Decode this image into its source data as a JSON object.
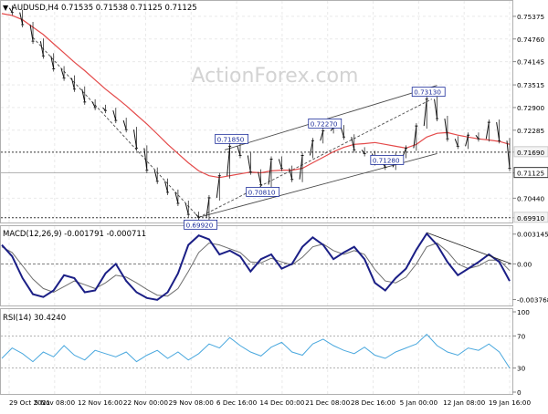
{
  "chart_data": [
    {
      "type": "candlestick",
      "symbol_header": {
        "marker": "▼",
        "text": "AUDUSD,H4  0.71535 0.71538 0.71125 0.71125"
      },
      "watermark": "ActionForex.com",
      "x_tick_labels": [
        "29 Oct 2021",
        "5 Nov 08:00",
        "12 Nov 16:00",
        "22 Nov 00:00",
        "29 Nov 08:00",
        "6 Dec 16:00",
        "14 Dec 00:00",
        "21 Dec 08:00",
        "28 Dec 16:00",
        "5 Jan 00:00",
        "12 Jan 08:00",
        "19 Jan 16:00"
      ],
      "y_tick_labels": [
        "0.75375",
        "0.74760",
        "0.74145",
        "0.73515",
        "0.72900",
        "0.72285",
        "0.71690",
        "0.71125",
        "0.70440",
        "0.69910"
      ],
      "ylim": [
        0.6983,
        0.7562
      ],
      "price_series_approx": [
        0.756,
        0.7548,
        0.7515,
        0.747,
        0.743,
        0.7395,
        0.737,
        0.734,
        0.7305,
        0.729,
        0.7282,
        0.7255,
        0.723,
        0.718,
        0.712,
        0.709,
        0.706,
        0.703,
        0.7,
        0.6992,
        0.7045,
        0.7105,
        0.7185,
        0.716,
        0.7115,
        0.7081,
        0.715,
        0.7125,
        0.7095,
        0.716,
        0.72,
        0.7227,
        0.7235,
        0.721,
        0.7175,
        0.7165,
        0.714,
        0.7128,
        0.716,
        0.718,
        0.724,
        0.7313,
        0.726,
        0.7205,
        0.7185,
        0.7215,
        0.7205,
        0.725,
        0.72,
        0.7125
      ],
      "moving_average_approx": [
        0.7545,
        0.754,
        0.7528,
        0.7508,
        0.7488,
        0.7463,
        0.7438,
        0.7413,
        0.739,
        0.7365,
        0.734,
        0.7318,
        0.7295,
        0.727,
        0.7245,
        0.7218,
        0.719,
        0.7165,
        0.714,
        0.7118,
        0.7105,
        0.71,
        0.7105,
        0.711,
        0.7115,
        0.7113,
        0.7118,
        0.712,
        0.712,
        0.7125,
        0.714,
        0.7155,
        0.717,
        0.7182,
        0.719,
        0.7192,
        0.7195,
        0.719,
        0.7185,
        0.718,
        0.719,
        0.721,
        0.722,
        0.7222,
        0.7215,
        0.721,
        0.7205,
        0.7202,
        0.7198,
        0.719
      ],
      "annotations": [
        {
          "label": "0.71850",
          "value": 0.7185,
          "index": 22
        },
        {
          "label": "0.70810",
          "value": 0.7081,
          "index": 25
        },
        {
          "label": "0.69920",
          "value": 0.6992,
          "index": 19
        },
        {
          "label": "0.72270",
          "value": 0.7227,
          "index": 31
        },
        {
          "label": "0.73130",
          "value": 0.7313,
          "index": 41
        },
        {
          "label": "0.71280",
          "value": 0.7128,
          "index": 37
        }
      ],
      "hlines": [
        {
          "value": 0.7169,
          "label": "0.71690",
          "style": "dotted"
        },
        {
          "value": 0.6991,
          "label": "0.69910",
          "style": "dotted"
        }
      ],
      "current_price": {
        "value": 0.71125,
        "label": "0.71125"
      }
    },
    {
      "type": "line",
      "title": "MACD(12,26,9) -0.001791 -0.000711",
      "y_tick_labels": [
        "0.003145",
        "0.00",
        "-0.003768"
      ],
      "ylim": [
        -0.0042,
        0.0036
      ],
      "macd_approx": [
        0.002,
        0.0008,
        -0.0015,
        -0.0032,
        -0.0035,
        -0.0028,
        -0.0012,
        -0.0015,
        -0.003,
        -0.0028,
        -0.001,
        0.0,
        -0.0018,
        -0.003,
        -0.0036,
        -0.0038,
        -0.003,
        -0.001,
        0.002,
        0.003,
        0.0026,
        0.001,
        0.0014,
        0.0008,
        -0.0008,
        0.0005,
        0.001,
        -0.0005,
        0.0,
        0.0018,
        0.0028,
        0.002,
        0.0005,
        0.0012,
        0.0018,
        0.0005,
        -0.002,
        -0.0028,
        -0.0015,
        -0.0005,
        0.0015,
        0.0032,
        0.002,
        0.0002,
        -0.0012,
        -0.0005,
        0.0002,
        0.001,
        0.0002,
        -0.0018
      ],
      "signal_approx": [
        0.0018,
        0.0012,
        -0.0002,
        -0.0016,
        -0.0026,
        -0.003,
        -0.0024,
        -0.0018,
        -0.0022,
        -0.0026,
        -0.002,
        -0.0012,
        -0.0014,
        -0.002,
        -0.0027,
        -0.0033,
        -0.0034,
        -0.0026,
        -0.0008,
        0.0012,
        0.0022,
        0.002,
        0.0016,
        0.0012,
        0.0002,
        0.0001,
        0.0006,
        0.0002,
        -0.0001,
        0.0007,
        0.0018,
        0.0021,
        0.0014,
        0.001,
        0.0014,
        0.001,
        -0.0006,
        -0.0018,
        -0.002,
        -0.0014,
        0.0,
        0.0018,
        0.0022,
        0.0013,
        0.0,
        -0.0005,
        -0.0002,
        0.0004,
        0.0004,
        -0.0007
      ]
    },
    {
      "type": "line",
      "title": "RSI(14) 30.4240",
      "y_tick_labels": [
        "100",
        "70",
        "30",
        "0"
      ],
      "ylim": [
        0,
        100
      ],
      "rsi_approx": [
        42,
        55,
        48,
        38,
        50,
        44,
        58,
        46,
        40,
        52,
        48,
        44,
        50,
        38,
        46,
        52,
        42,
        50,
        40,
        48,
        60,
        55,
        68,
        58,
        50,
        45,
        56,
        62,
        50,
        46,
        60,
        66,
        58,
        52,
        48,
        56,
        46,
        42,
        50,
        55,
        60,
        72,
        58,
        50,
        46,
        55,
        52,
        60,
        50,
        30
      ]
    }
  ],
  "colors": {
    "background": "#ffffff",
    "grid": "#e9e9e9",
    "price": "#111111",
    "moving_average": "#e44a4a",
    "channel": "#4c4c4c",
    "annotation_box": "#1c2d9a",
    "macd_line": "#1b1f86",
    "signal_line": "#6e6e6e",
    "rsi_line": "#4aa8de",
    "pane_border": "#b0b0b0"
  }
}
